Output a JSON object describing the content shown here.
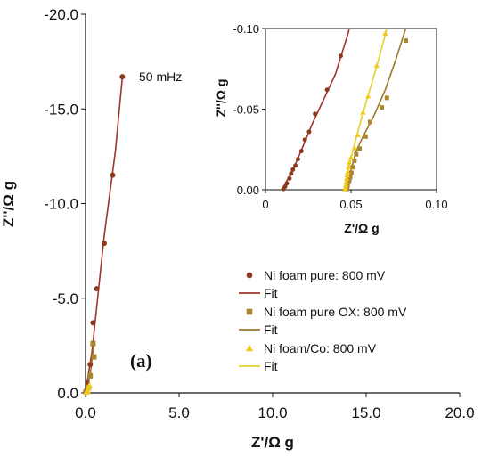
{
  "chart_data": [
    {
      "type": "scatter",
      "xlabel": "Z'/Ω g",
      "ylabel": "Z''/Ω g",
      "xlim": [
        0,
        20
      ],
      "ylim": [
        0,
        -20
      ],
      "xticks": [
        "0.0",
        "5.0",
        "10.0",
        "15.0",
        "20.0"
      ],
      "yticks": [
        "0.0",
        "-5.0",
        "-10.0",
        "-15.0",
        "-20.0"
      ],
      "grid": false,
      "legend_position": "bottom-right",
      "annotation": {
        "text": "50 mHz",
        "x": 1.97,
        "y": -16.7
      },
      "panel_label": "(a)",
      "series": [
        {
          "name": "Ni foam pure: 800 mV",
          "marker": "circle",
          "color": "#8B3A1E",
          "points": [
            [
              0.02,
              -0.1
            ],
            [
              0.1,
              -0.5
            ],
            [
              0.25,
              -1.5
            ],
            [
              0.4,
              -3.7
            ],
            [
              0.6,
              -5.5
            ],
            [
              1.0,
              -7.9
            ],
            [
              1.45,
              -11.5
            ],
            [
              1.97,
              -16.7
            ]
          ],
          "fit_name": "Fit",
          "fit_color": "#A0342A",
          "fit": [
            [
              0.0,
              -0.05
            ],
            [
              0.35,
              -2.2
            ],
            [
              1.0,
              -8.3
            ],
            [
              1.6,
              -12.8
            ],
            [
              1.97,
              -16.7
            ]
          ]
        },
        {
          "name": "Ni foam pure OX: 800 mV",
          "marker": "square",
          "color": "#A8862E",
          "points": [
            [
              0.05,
              -0.05
            ],
            [
              0.15,
              -0.3
            ],
            [
              0.25,
              -0.9
            ],
            [
              0.4,
              -2.6
            ],
            [
              0.45,
              -1.9
            ]
          ],
          "fit_name": "Fit",
          "fit_color": "#9B7A2C",
          "fit": [
            [
              0.05,
              -0.05
            ],
            [
              0.25,
              -1.0
            ],
            [
              0.45,
              -2.6
            ]
          ]
        },
        {
          "name": "Ni foam/Co: 800 mV",
          "marker": "triangle",
          "color": "#EFCB1B",
          "points": [
            [
              0.05,
              -0.04
            ],
            [
              0.1,
              -0.1
            ],
            [
              0.15,
              -0.25
            ],
            [
              0.2,
              -0.4
            ]
          ],
          "fit_name": "Fit",
          "fit_color": "#E6D02E",
          "fit": [
            [
              0.05,
              -0.04
            ],
            [
              0.2,
              -0.4
            ]
          ]
        }
      ]
    },
    {
      "type": "scatter",
      "xlabel": "Z'/Ω g",
      "ylabel": "Z''/Ω g",
      "xlim": [
        0,
        0.1
      ],
      "ylim": [
        0,
        -0.1
      ],
      "xticks": [
        "0",
        "0.05",
        "0.10"
      ],
      "yticks": [
        "0.00",
        "-0.05",
        "-0.10"
      ],
      "grid": false,
      "series": [
        {
          "name": "Ni foam pure: 800 mV",
          "marker": "circle",
          "color": "#8B3A1E",
          "points": [
            [
              0.0105,
              -0.0005
            ],
            [
              0.0115,
              -0.002
            ],
            [
              0.0125,
              -0.004
            ],
            [
              0.014,
              -0.007
            ],
            [
              0.015,
              -0.01
            ],
            [
              0.016,
              -0.0125
            ],
            [
              0.0175,
              -0.015
            ],
            [
              0.019,
              -0.019
            ],
            [
              0.021,
              -0.024
            ],
            [
              0.023,
              -0.031
            ],
            [
              0.0255,
              -0.036
            ],
            [
              0.029,
              -0.047
            ],
            [
              0.036,
              -0.062
            ],
            [
              0.044,
              -0.083
            ]
          ],
          "fit_color": "#A0342A",
          "fit": [
            [
              0.0095,
              0.0
            ],
            [
              0.015,
              -0.01
            ],
            [
              0.02,
              -0.022
            ],
            [
              0.027,
              -0.04
            ],
            [
              0.034,
              -0.056
            ],
            [
              0.041,
              -0.072
            ],
            [
              0.048,
              -0.096
            ],
            [
              0.049,
              -0.1
            ]
          ]
        },
        {
          "name": "Ni foam pure OX: 800 mV",
          "marker": "square",
          "color": "#A8862E",
          "points": [
            [
              0.0475,
              -0.0005
            ],
            [
              0.0478,
              -0.0015
            ],
            [
              0.048,
              -0.003
            ],
            [
              0.0485,
              -0.005
            ],
            [
              0.049,
              -0.006
            ],
            [
              0.0495,
              -0.008
            ],
            [
              0.0502,
              -0.0105
            ],
            [
              0.051,
              -0.014
            ],
            [
              0.052,
              -0.018
            ],
            [
              0.053,
              -0.022
            ],
            [
              0.055,
              -0.0255
            ],
            [
              0.0585,
              -0.033
            ],
            [
              0.0612,
              -0.042
            ],
            [
              0.068,
              -0.051
            ],
            [
              0.071,
              -0.057
            ],
            [
              0.082,
              -0.0925
            ]
          ],
          "fit_color": "#9B7A2C",
          "fit": [
            [
              0.047,
              0.0
            ],
            [
              0.05,
              -0.012
            ],
            [
              0.053,
              -0.024
            ],
            [
              0.057,
              -0.033
            ],
            [
              0.063,
              -0.045
            ],
            [
              0.07,
              -0.062
            ],
            [
              0.076,
              -0.08
            ],
            [
              0.082,
              -0.1
            ]
          ]
        },
        {
          "name": "Ni foam/Co: 800 mV",
          "marker": "triangle",
          "color": "#EFCB1B",
          "points": [
            [
              0.0465,
              -0.0005
            ],
            [
              0.0468,
              -0.0015
            ],
            [
              0.047,
              -0.003
            ],
            [
              0.0472,
              -0.005
            ],
            [
              0.0475,
              -0.007
            ],
            [
              0.0478,
              -0.009
            ],
            [
              0.048,
              -0.011
            ],
            [
              0.0485,
              -0.014
            ],
            [
              0.049,
              -0.017
            ],
            [
              0.05,
              -0.02
            ],
            [
              0.052,
              -0.026
            ],
            [
              0.054,
              -0.034
            ],
            [
              0.057,
              -0.048
            ],
            [
              0.06,
              -0.058
            ],
            [
              0.065,
              -0.077
            ],
            [
              0.07,
              -0.097
            ]
          ],
          "fit_color": "#E6D02E",
          "fit": [
            [
              0.046,
              0.0
            ],
            [
              0.05,
              -0.02
            ],
            [
              0.055,
              -0.04
            ],
            [
              0.061,
              -0.062
            ],
            [
              0.066,
              -0.08
            ],
            [
              0.071,
              -0.1
            ]
          ]
        }
      ]
    }
  ]
}
